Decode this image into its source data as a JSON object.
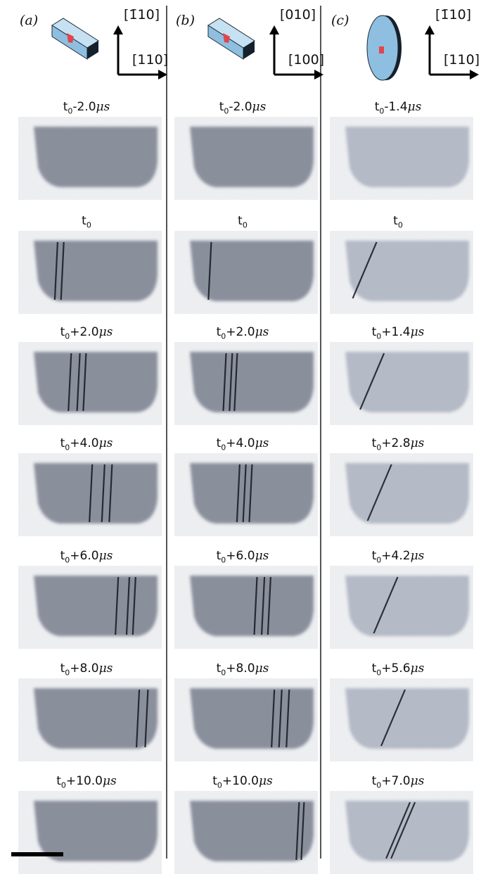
{
  "columns": [
    {
      "panel": "(a)",
      "dirs": {
        "up": "[1̄10]",
        "right": "[110]"
      },
      "frames": [
        {
          "prefix": "t",
          "sub": "0",
          "offset": "-2.0",
          "unit": "μs",
          "lines": []
        },
        {
          "prefix": "t",
          "sub": "0",
          "offset": "",
          "unit": "",
          "lines": [
            0.17,
            0.22
          ]
        },
        {
          "prefix": "t",
          "sub": "0",
          "offset": "+2.0",
          "unit": "μs",
          "lines": [
            0.28,
            0.35,
            0.4
          ]
        },
        {
          "prefix": "t",
          "sub": "0",
          "offset": "+4.0",
          "unit": "μs",
          "lines": [
            0.45,
            0.55,
            0.61
          ]
        },
        {
          "prefix": "t",
          "sub": "0",
          "offset": "+6.0",
          "unit": "μs",
          "lines": [
            0.66,
            0.75,
            0.8
          ]
        },
        {
          "prefix": "t",
          "sub": "0",
          "offset": "+8.0",
          "unit": "μs",
          "lines": [
            0.83,
            0.9
          ]
        },
        {
          "prefix": "t",
          "sub": "0",
          "offset": "+10.0",
          "unit": "μs",
          "lines": []
        }
      ]
    },
    {
      "panel": "(b)",
      "dirs": {
        "up": "[010]",
        "right": "[100]"
      },
      "frames": [
        {
          "prefix": "t",
          "sub": "0",
          "offset": "-2.0",
          "unit": "μs",
          "lines": []
        },
        {
          "prefix": "t",
          "sub": "0",
          "offset": "",
          "unit": "",
          "lines": [
            0.15
          ]
        },
        {
          "prefix": "t",
          "sub": "0",
          "offset": "+2.0",
          "unit": "μs",
          "lines": [
            0.27,
            0.32,
            0.36
          ]
        },
        {
          "prefix": "t",
          "sub": "0",
          "offset": "+4.0",
          "unit": "μs",
          "lines": [
            0.38,
            0.43,
            0.48
          ]
        },
        {
          "prefix": "t",
          "sub": "0",
          "offset": "+6.0",
          "unit": "μs",
          "lines": [
            0.52,
            0.58,
            0.63
          ]
        },
        {
          "prefix": "t",
          "sub": "0",
          "offset": "+8.0",
          "unit": "μs",
          "lines": [
            0.66,
            0.72,
            0.78
          ]
        },
        {
          "prefix": "t",
          "sub": "0",
          "offset": "+10.0",
          "unit": "μs",
          "lines": [
            0.86,
            0.9
          ]
        }
      ]
    },
    {
      "panel": "(c)",
      "dirs": {
        "up": "[1̄10]",
        "right": "[110]"
      },
      "frames": [
        {
          "prefix": "t",
          "sub": "0",
          "offset": "-1.4",
          "unit": "μs",
          "lines": []
        },
        {
          "prefix": "t",
          "sub": "0",
          "offset": "",
          "unit": "",
          "lines": [
            0.06
          ]
        },
        {
          "prefix": "t",
          "sub": "0",
          "offset": "+1.4",
          "unit": "μs",
          "lines": [
            0.12
          ]
        },
        {
          "prefix": "t",
          "sub": "0",
          "offset": "+2.8",
          "unit": "μs",
          "lines": [
            0.18
          ]
        },
        {
          "prefix": "t",
          "sub": "0",
          "offset": "+4.2",
          "unit": "μs",
          "lines": [
            0.23
          ]
        },
        {
          "prefix": "t",
          "sub": "0",
          "offset": "+5.6",
          "unit": "μs",
          "lines": [
            0.29
          ]
        },
        {
          "prefix": "t",
          "sub": "0",
          "offset": "+7.0",
          "unit": "μs",
          "lines": [
            0.33,
            0.37
          ]
        }
      ]
    }
  ],
  "colors": {
    "sample": "#8a8f9c",
    "sample_light": "#b4bac6",
    "slip_line": "#15181f",
    "crystal": "#8ebfe0",
    "marker": "#e0464c"
  }
}
